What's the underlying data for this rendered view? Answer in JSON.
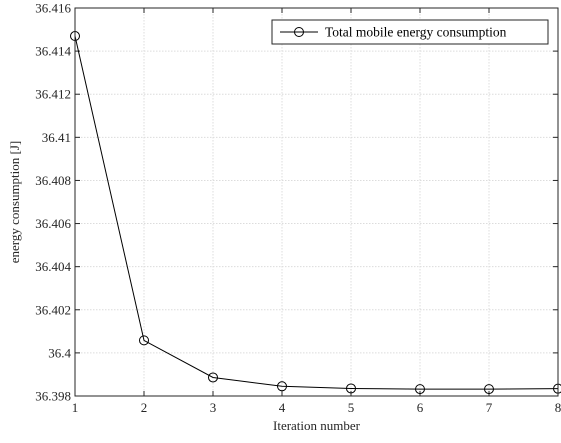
{
  "chart_data": {
    "type": "line",
    "title": "",
    "xlabel": "Iteration number",
    "ylabel": "energy consumption [J]",
    "xlim": [
      1,
      8
    ],
    "ylim": [
      36.398,
      36.416
    ],
    "xticks": [
      1,
      2,
      3,
      4,
      5,
      6,
      7,
      8
    ],
    "xtick_labels": [
      "1",
      "2",
      "3",
      "4",
      "5",
      "6",
      "7",
      "8"
    ],
    "yticks": [
      36.398,
      36.4,
      36.402,
      36.404,
      36.406,
      36.408,
      36.41,
      36.412,
      36.414,
      36.416
    ],
    "ytick_labels": [
      "36.398",
      "36.4",
      "36.402",
      "36.404",
      "36.406",
      "36.408",
      "36.41",
      "36.412",
      "36.414",
      "36.416"
    ],
    "grid": true,
    "legend_position": "top-right",
    "series": [
      {
        "name": "Total mobile energy consumption",
        "color": "#000000",
        "marker": "circle",
        "x": [
          1,
          2,
          3,
          4,
          5,
          6,
          7,
          8
        ],
        "y": [
          36.4147,
          36.40058,
          36.39886,
          36.39845,
          36.39835,
          36.39832,
          36.39832,
          36.39834
        ]
      }
    ]
  }
}
